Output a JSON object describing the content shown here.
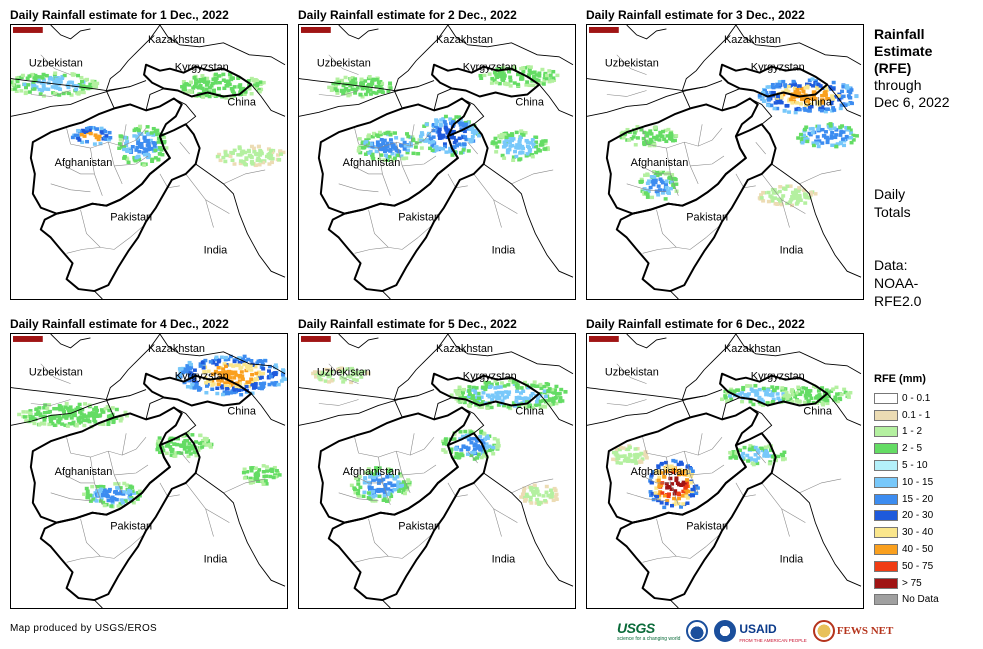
{
  "panels": [
    {
      "title": "Daily Rainfall estimate for 1 Dec., 2022",
      "day": 1
    },
    {
      "title": "Daily Rainfall estimate for 2 Dec., 2022",
      "day": 2
    },
    {
      "title": "Daily Rainfall estimate for 3 Dec., 2022",
      "day": 3
    },
    {
      "title": "Daily Rainfall estimate for 4 Dec., 2022",
      "day": 4
    },
    {
      "title": "Daily Rainfall estimate for 5 Dec., 2022",
      "day": 5
    },
    {
      "title": "Daily Rainfall estimate for 6 Dec., 2022",
      "day": 6
    }
  ],
  "map_labels": {
    "kazakhstan": "Kazakhstan",
    "uzbekistan": "Uzbekistan",
    "kyrgyzstan": "Kyrgyzstan",
    "china": "China",
    "afghanistan": "Afghanistan",
    "pakistan": "Pakistan",
    "india": "India"
  },
  "sidebar": {
    "title_line1": "Rainfall",
    "title_line2": "Estimate",
    "title_line3": "(RFE)",
    "title_line4": "through",
    "title_line5": "Dec 6, 2022",
    "daily_line1": "Daily",
    "daily_line2": "Totals",
    "data_line1": "Data:",
    "data_line2": "NOAA-",
    "data_line3": "RFE2.0"
  },
  "legend": {
    "title": "RFE (mm)",
    "items": [
      {
        "label": "0 - 0.1",
        "color": "#ffffff"
      },
      {
        "label": "0.1 - 1",
        "color": "#ecdcb4"
      },
      {
        "label": "1 - 2",
        "color": "#b4f0a0"
      },
      {
        "label": "2 - 5",
        "color": "#64dc64"
      },
      {
        "label": "5 - 10",
        "color": "#b4f0fa"
      },
      {
        "label": "10 - 15",
        "color": "#78c8fa"
      },
      {
        "label": "15 - 20",
        "color": "#3c8cf0"
      },
      {
        "label": "20 - 30",
        "color": "#1e5adc"
      },
      {
        "label": "30 - 40",
        "color": "#fae68c"
      },
      {
        "label": "40 - 50",
        "color": "#faa01e"
      },
      {
        "label": "50 - 75",
        "color": "#f03c14"
      },
      {
        "label": "> 75",
        "color": "#a01414"
      },
      {
        "label": "No Data",
        "color": "#a0a0a0"
      }
    ]
  },
  "footer": {
    "credit": "Map produced by USGS/EROS",
    "usgs": "USGS",
    "usgs_tagline": "science for a changing world",
    "usaid": "USAID",
    "usaid_tagline": "FROM THE AMERICAN PEOPLE",
    "fews": "FEWS NET"
  }
}
